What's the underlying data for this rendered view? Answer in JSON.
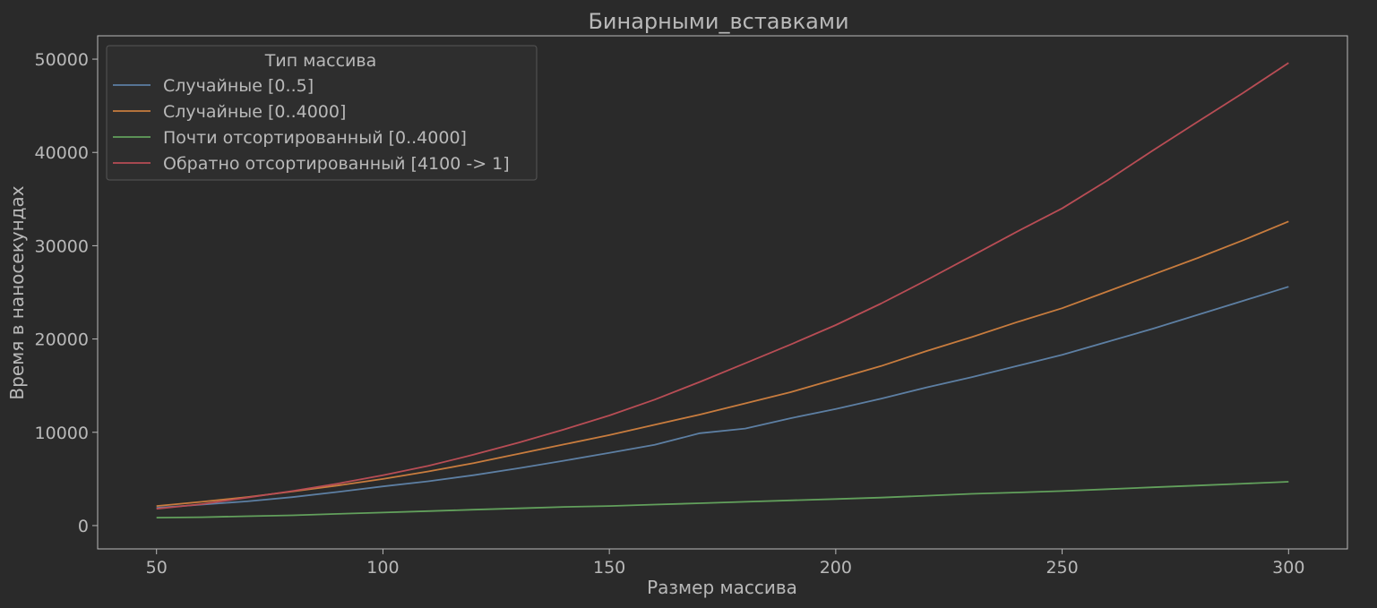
{
  "chart_data": {
    "type": "line",
    "title": "Бинарными_вставками",
    "xlabel": "Размер массива",
    "ylabel": "Время в наносекундах",
    "xlim": [
      37,
      313
    ],
    "ylim": [
      -2500,
      52500
    ],
    "xticks": [
      50,
      100,
      150,
      200,
      250,
      300
    ],
    "yticks": [
      0,
      10000,
      20000,
      30000,
      40000,
      50000
    ],
    "legend": {
      "title": "Тип массива",
      "placement": "top-left"
    },
    "x": [
      50,
      60,
      70,
      80,
      90,
      100,
      110,
      120,
      130,
      140,
      150,
      160,
      170,
      180,
      190,
      200,
      210,
      220,
      230,
      240,
      250,
      260,
      270,
      280,
      290,
      300
    ],
    "series": [
      {
        "name": "Случайные [0..5]",
        "color": "#5d7fa3",
        "values": [
          1900,
          2250,
          2600,
          3050,
          3600,
          4200,
          4750,
          5400,
          6150,
          6950,
          7800,
          8650,
          9900,
          10400,
          11500,
          12500,
          13600,
          14800,
          15900,
          17100,
          18300,
          19700,
          21100,
          22600,
          24100,
          25600
        ]
      },
      {
        "name": "Случайные [0..4000]",
        "color": "#c87c3e",
        "values": [
          2100,
          2550,
          3050,
          3650,
          4300,
          5000,
          5800,
          6700,
          7700,
          8700,
          9700,
          10800,
          11900,
          13100,
          14300,
          15700,
          17100,
          18700,
          20200,
          21800,
          23300,
          25100,
          26900,
          28700,
          30600,
          32600
        ]
      },
      {
        "name": "Почти отсортированный [0..4000]",
        "color": "#62a05c",
        "values": [
          850,
          900,
          1000,
          1100,
          1250,
          1400,
          1550,
          1700,
          1850,
          2000,
          2100,
          2250,
          2400,
          2550,
          2700,
          2850,
          3000,
          3200,
          3400,
          3550,
          3700,
          3900,
          4100,
          4300,
          4500,
          4700
        ]
      },
      {
        "name": "Обратно отсортированный [4100 -> 1]",
        "color": "#b84d55",
        "values": [
          1800,
          2300,
          3000,
          3700,
          4500,
          5400,
          6400,
          7600,
          8900,
          10300,
          11800,
          13500,
          15400,
          17400,
          19400,
          21500,
          23800,
          26300,
          28900,
          31500,
          34000,
          37000,
          40200,
          43300,
          46400,
          49600
        ]
      }
    ]
  }
}
